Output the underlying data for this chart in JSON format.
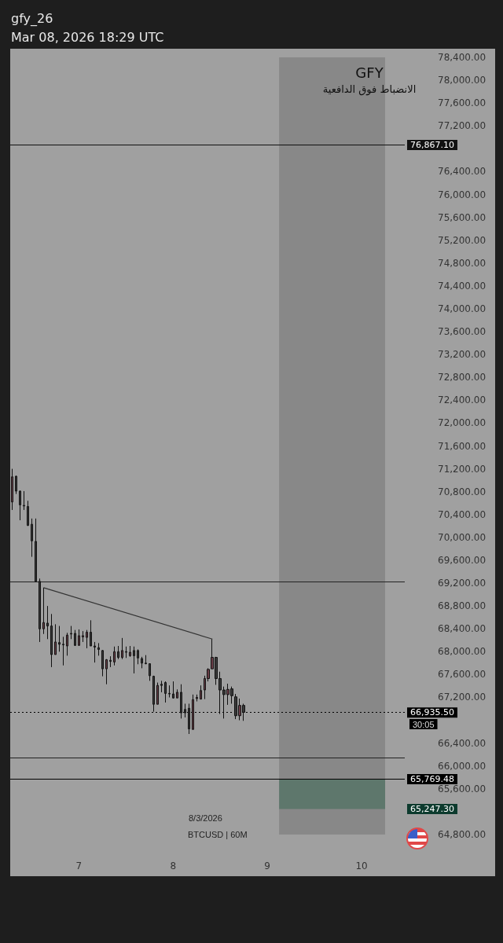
{
  "chart_data": {
    "type": "candlestick",
    "title": "GFY",
    "subtitle": "الانضباط فوق الدافعية",
    "annotations": [
      "gfy_26",
      "Mar 08, 2026 18:29 UTC",
      "8/3/2026",
      "BTCUSD | 60M",
      "30:05"
    ],
    "grid": false,
    "xlim": [
      "2026-03-06T06:30",
      "2026-03-10T11:00"
    ],
    "xticks": [
      {
        "value": "2026-03-07",
        "label": "7"
      },
      {
        "value": "2026-03-08",
        "label": "8"
      },
      {
        "value": "2026-03-09",
        "label": "9"
      },
      {
        "value": "2026-03-10",
        "label": "10"
      }
    ],
    "ylim": [
      64800,
      78400
    ],
    "yticks": [
      {
        "value": 64800,
        "label": "64,800.00"
      },
      {
        "value": 65600,
        "label": "65,600.00"
      },
      {
        "value": 66000,
        "label": "66,000.00"
      },
      {
        "value": 66400,
        "label": "66,400.00"
      },
      {
        "value": 67200,
        "label": "67,200.00"
      },
      {
        "value": 67600,
        "label": "67,600.00"
      },
      {
        "value": 68000,
        "label": "68,000.00"
      },
      {
        "value": 68400,
        "label": "68,400.00"
      },
      {
        "value": 68800,
        "label": "68,800.00"
      },
      {
        "value": 69200,
        "label": "69,200.00"
      },
      {
        "value": 69600,
        "label": "69,600.00"
      },
      {
        "value": 70000,
        "label": "70,000.00"
      },
      {
        "value": 70400,
        "label": "70,400.00"
      },
      {
        "value": 70800,
        "label": "70,800.00"
      },
      {
        "value": 71200,
        "label": "71,200.00"
      },
      {
        "value": 71600,
        "label": "71,600.00"
      },
      {
        "value": 72000,
        "label": "72,000.00"
      },
      {
        "value": 72400,
        "label": "72,400.00"
      },
      {
        "value": 72800,
        "label": "72,800.00"
      },
      {
        "value": 73200,
        "label": "73,200.00"
      },
      {
        "value": 73600,
        "label": "73,600.00"
      },
      {
        "value": 74000,
        "label": "74,000.00"
      },
      {
        "value": 74400,
        "label": "74,400.00"
      },
      {
        "value": 74800,
        "label": "74,800.00"
      },
      {
        "value": 75200,
        "label": "75,200.00"
      },
      {
        "value": 75600,
        "label": "75,600.00"
      },
      {
        "value": 76000,
        "label": "76,000.00"
      },
      {
        "value": 76400,
        "label": "76,400.00"
      },
      {
        "value": 77200,
        "label": "77,200.00"
      },
      {
        "value": 77600,
        "label": "77,600.00"
      },
      {
        "value": 78000,
        "label": "78,000.00"
      },
      {
        "value": 78400,
        "label": "78,400.00"
      }
    ],
    "ref_lines": [
      {
        "axis": "y",
        "value": 76867.1,
        "label": "76,867.10",
        "color": "#111111"
      },
      {
        "axis": "y",
        "value": 69220,
        "label": null,
        "color": "#222222"
      },
      {
        "axis": "y",
        "value": 66150,
        "label": null,
        "color": "#222222"
      },
      {
        "axis": "y",
        "value": 65769.48,
        "label": "65,769.48",
        "color": "#000000"
      },
      {
        "axis": "y",
        "value": 66935.5,
        "label": "66,935.50",
        "color": "#000000",
        "line_style": "dotted"
      }
    ],
    "bands": [
      {
        "axis": "x",
        "from": "2026-03-09T03:00",
        "to": "2026-03-10T06:00",
        "label": null,
        "color": "#888888"
      },
      {
        "axis": "y",
        "from": 65247.3,
        "to": 65769.48,
        "label": "65,247.30",
        "color": "#5e776c"
      }
    ],
    "series": [
      {
        "colors": [
          "#6b3f48",
          "#3a3a3a",
          "#3a3a3a",
          "#3a3a3a",
          "#3a3a3a",
          "#3a3a3a",
          "#3a3a3a",
          "#3a3a3a",
          "#6b3f48",
          "#3a3a3a",
          "#3a3a3a",
          "#6b3f48",
          "#3a3a3a",
          "#3a3a3a",
          "#6b3f48",
          "#6b3f48",
          "#3a3a3a",
          "#6b3f48",
          "#6b3f48",
          "#6b3f48",
          "#3a3a3a",
          "#3a3a3a",
          "#3a3a3a",
          "#3a3a3a",
          "#6b3f48",
          "#3a3a3a",
          "#6b3f48",
          "#3a3a3a",
          "#6b3f48",
          "#3a3a3a",
          "#6b3f48",
          "#3a3a3a",
          "#3a3a3a",
          "#3a3a3a",
          "#3a3a3a",
          "#3a3a3a",
          "#3a3a3a",
          "#6b3f48",
          "#3a3a3a",
          "#3a3a3a",
          "#3a3a3a",
          "#3a3a3a",
          "#6b3f48",
          "#3a3a3a",
          "#3a3a3a",
          "#3a3a3a",
          "#6b3f48",
          "#6b3f48",
          "#6b3f48",
          "#6b3f48",
          "#6b3f48",
          "#6b3f48",
          "#3a3a3a",
          "#3a3a3a",
          "#3a3a3a",
          "#6b3f48",
          "#3a3a3a",
          "#3a3a3a",
          "#6b3f48",
          "#3a3a3a"
        ],
        "x": [
          "2026-03-06T07:00",
          "2026-03-06T08:00",
          "2026-03-06T09:00",
          "2026-03-06T10:00",
          "2026-03-06T11:00",
          "2026-03-06T12:00",
          "2026-03-06T13:00",
          "2026-03-06T14:00",
          "2026-03-06T15:00",
          "2026-03-06T16:00",
          "2026-03-06T17:00",
          "2026-03-06T18:00",
          "2026-03-06T19:00",
          "2026-03-06T20:00",
          "2026-03-06T21:00",
          "2026-03-06T22:00",
          "2026-03-06T23:00",
          "2026-03-07T00:00",
          "2026-03-07T01:00",
          "2026-03-07T02:00",
          "2026-03-07T03:00",
          "2026-03-07T04:00",
          "2026-03-07T05:00",
          "2026-03-07T06:00",
          "2026-03-07T07:00",
          "2026-03-07T08:00",
          "2026-03-07T09:00",
          "2026-03-07T10:00",
          "2026-03-07T11:00",
          "2026-03-07T12:00",
          "2026-03-07T13:00",
          "2026-03-07T14:00",
          "2026-03-07T15:00",
          "2026-03-07T16:00",
          "2026-03-07T17:00",
          "2026-03-07T18:00",
          "2026-03-07T19:00",
          "2026-03-07T20:00",
          "2026-03-07T21:00",
          "2026-03-07T22:00",
          "2026-03-07T23:00",
          "2026-03-08T00:00",
          "2026-03-08T01:00",
          "2026-03-08T02:00",
          "2026-03-08T03:00",
          "2026-03-08T04:00",
          "2026-03-08T05:00",
          "2026-03-08T06:00",
          "2026-03-08T07:00",
          "2026-03-08T08:00",
          "2026-03-08T09:00",
          "2026-03-08T10:00",
          "2026-03-08T11:00",
          "2026-03-08T12:00",
          "2026-03-08T13:00",
          "2026-03-08T14:00",
          "2026-03-08T15:00",
          "2026-03-08T16:00",
          "2026-03-08T17:00",
          "2026-03-08T18:00"
        ],
        "ohlc": [
          [
            70620,
            71200,
            70480,
            71060
          ],
          [
            71070,
            71080,
            70760,
            70810
          ],
          [
            70810,
            70820,
            70300,
            70570
          ],
          [
            70560,
            70810,
            70480,
            70550
          ],
          [
            70540,
            70640,
            70200,
            70210
          ],
          [
            70230,
            70330,
            69660,
            69940
          ],
          [
            69930,
            70330,
            69220,
            69230
          ],
          [
            69230,
            69280,
            68170,
            68400
          ],
          [
            68400,
            69120,
            68310,
            68510
          ],
          [
            68500,
            68800,
            68220,
            68450
          ],
          [
            68450,
            68660,
            67730,
            67950
          ],
          [
            67950,
            68480,
            67950,
            68170
          ],
          [
            68160,
            68450,
            68000,
            68130
          ],
          [
            68130,
            68260,
            67760,
            68120
          ],
          [
            68100,
            68330,
            67930,
            68290
          ],
          [
            68310,
            68450,
            68220,
            68320
          ],
          [
            68320,
            68380,
            68100,
            68110
          ],
          [
            68110,
            68390,
            68110,
            68280
          ],
          [
            68260,
            68360,
            68170,
            68280
          ],
          [
            68250,
            68380,
            68060,
            68340
          ],
          [
            68340,
            68550,
            68100,
            68100
          ],
          [
            68100,
            68170,
            67810,
            68080
          ],
          [
            68070,
            68150,
            67930,
            68040
          ],
          [
            68020,
            68030,
            67570,
            67700
          ],
          [
            67700,
            67870,
            67430,
            67860
          ],
          [
            67850,
            67920,
            67730,
            67830
          ],
          [
            67820,
            68090,
            67760,
            68000
          ],
          [
            68000,
            68100,
            67870,
            67900
          ],
          [
            67900,
            68240,
            67870,
            68020
          ],
          [
            68000,
            68090,
            67890,
            67990
          ],
          [
            67930,
            68100,
            67910,
            67990
          ],
          [
            68020,
            68090,
            67620,
            67930
          ],
          [
            68020,
            68040,
            67780,
            67890
          ],
          [
            67880,
            67910,
            67710,
            67800
          ],
          [
            67800,
            67940,
            67780,
            67790
          ],
          [
            67790,
            67790,
            67490,
            67580
          ],
          [
            67570,
            67580,
            66950,
            67080
          ],
          [
            67080,
            67460,
            67080,
            67410
          ],
          [
            67430,
            67490,
            67290,
            67410
          ],
          [
            67460,
            67480,
            67110,
            67270
          ],
          [
            67270,
            67410,
            67200,
            67260
          ],
          [
            67260,
            67480,
            67180,
            67190
          ],
          [
            67190,
            67340,
            67190,
            67290
          ],
          [
            67290,
            67430,
            66830,
            66930
          ],
          [
            66990,
            67090,
            66850,
            66930
          ],
          [
            67010,
            67090,
            66560,
            66650
          ],
          [
            66640,
            67250,
            66640,
            67160
          ],
          [
            67180,
            67250,
            67130,
            67200
          ],
          [
            67170,
            67410,
            67170,
            67320
          ],
          [
            67330,
            67580,
            67170,
            67530
          ],
          [
            67530,
            67710,
            67480,
            67690
          ],
          [
            67700,
            68220,
            67700,
            67900
          ],
          [
            67900,
            67910,
            67420,
            67530
          ],
          [
            67530,
            67650,
            66910,
            67330
          ],
          [
            67330,
            67390,
            66830,
            67250
          ],
          [
            67250,
            67440,
            67070,
            67340
          ],
          [
            67350,
            67390,
            67090,
            67230
          ],
          [
            67210,
            67260,
            66820,
            66880
          ],
          [
            66880,
            67180,
            66800,
            67060
          ],
          [
            67060,
            67090,
            66790,
            66940
          ]
        ]
      },
      {
        "type": "line",
        "color": "#333333",
        "x": [
          "2026-03-06T15:00",
          "2026-03-08T10:00"
        ],
        "values": [
          69120,
          68220
        ]
      }
    ]
  }
}
